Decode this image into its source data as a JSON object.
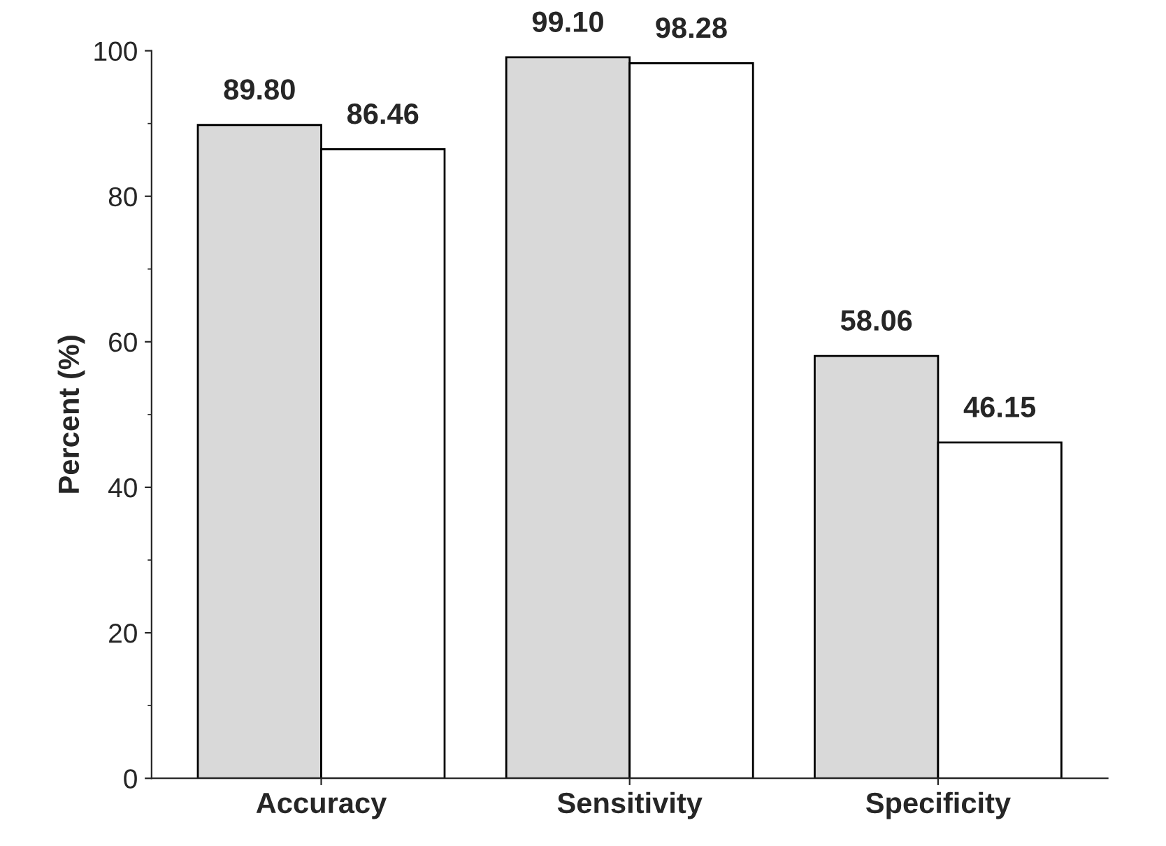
{
  "chart_data": {
    "type": "bar",
    "ylabel": "Percent (%)",
    "categories": [
      "Accuracy",
      "Sensitivity",
      "Specificity"
    ],
    "series": [
      {
        "color": "#d9d9d9",
        "values": [
          89.8,
          99.1,
          58.06
        ],
        "value_labels": [
          "89.80",
          "99.10",
          "58.06"
        ]
      },
      {
        "color": "#ffffff",
        "values": [
          86.46,
          98.28,
          46.15
        ],
        "value_labels": [
          "86.46",
          "98.28",
          "46.15"
        ]
      }
    ],
    "ylim": [
      0,
      100
    ],
    "yticks": [
      0,
      20,
      40,
      60,
      80,
      100
    ],
    "grid": false
  }
}
